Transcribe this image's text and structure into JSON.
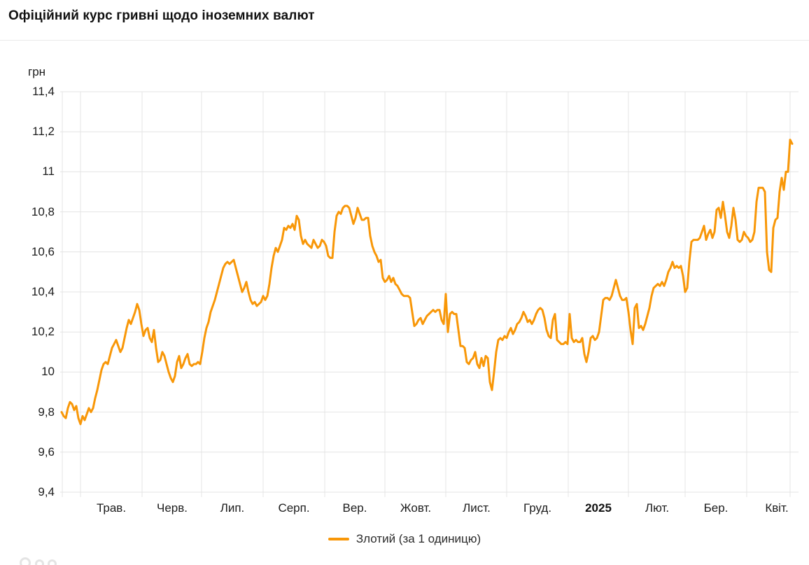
{
  "header": {
    "title": "Офіційний курс гривні щодо іноземних валют"
  },
  "legend": {
    "items": [
      {
        "label": "Злотий (за 1 одиницю)",
        "color": "#F89708"
      }
    ]
  },
  "chart_data": {
    "type": "line",
    "title": "Офіційний курс гривні щодо іноземних валют",
    "xlabel": "",
    "ylabel": "грн",
    "ylim": [
      9.4,
      11.4
    ],
    "grid": true,
    "legend_position": "bottom",
    "y_ticks": [
      11.4,
      11.2,
      11.0,
      10.8,
      10.6,
      10.4,
      10.2,
      10.0,
      9.8,
      9.6,
      9.4
    ],
    "y_tick_labels": [
      "11,4",
      "11,2",
      "11",
      "10,8",
      "10,6",
      "10,4",
      "10,2",
      "10",
      "9,8",
      "9,6",
      "9,4"
    ],
    "x_tick_labels": [
      "Трав.",
      "Черв.",
      "Лип.",
      "Серп.",
      "Вер.",
      "Жовт.",
      "Лист.",
      "Груд.",
      "2025",
      "Лют.",
      "Бер.",
      "Квіт."
    ],
    "x_bold_label": "2025",
    "period": "mid-April 2024 to mid-April 2025, daily values",
    "series": [
      {
        "name": "Злотий (за 1 одиницю)",
        "color": "#F89708",
        "unit": "грн",
        "values": [
          9.8,
          9.78,
          9.77,
          9.82,
          9.85,
          9.84,
          9.81,
          9.83,
          9.77,
          9.74,
          9.78,
          9.76,
          9.79,
          9.82,
          9.8,
          9.82,
          9.87,
          9.91,
          9.96,
          10.01,
          10.04,
          10.05,
          10.04,
          10.08,
          10.12,
          10.14,
          10.16,
          10.13,
          10.1,
          10.12,
          10.17,
          10.22,
          10.26,
          10.24,
          10.27,
          10.3,
          10.34,
          10.31,
          10.24,
          10.18,
          10.21,
          10.22,
          10.17,
          10.15,
          10.21,
          10.12,
          10.05,
          10.06,
          10.1,
          10.08,
          10.04,
          10.0,
          9.97,
          9.95,
          9.98,
          10.05,
          10.08,
          10.02,
          10.04,
          10.07,
          10.09,
          10.04,
          10.03,
          10.04,
          10.04,
          10.05,
          10.04,
          10.1,
          10.17,
          10.22,
          10.25,
          10.3,
          10.33,
          10.36,
          10.4,
          10.44,
          10.48,
          10.52,
          10.54,
          10.55,
          10.54,
          10.55,
          10.56,
          10.52,
          10.48,
          10.44,
          10.4,
          10.42,
          10.45,
          10.4,
          10.36,
          10.34,
          10.35,
          10.33,
          10.34,
          10.35,
          10.38,
          10.36,
          10.38,
          10.44,
          10.52,
          10.58,
          10.62,
          10.6,
          10.63,
          10.66,
          10.72,
          10.71,
          10.73,
          10.72,
          10.74,
          10.71,
          10.78,
          10.76,
          10.68,
          10.64,
          10.66,
          10.64,
          10.63,
          10.62,
          10.66,
          10.64,
          10.62,
          10.63,
          10.66,
          10.65,
          10.63,
          10.58,
          10.57,
          10.57,
          10.7,
          10.78,
          10.8,
          10.79,
          10.82,
          10.83,
          10.83,
          10.82,
          10.78,
          10.74,
          10.77,
          10.82,
          10.79,
          10.76,
          10.76,
          10.77,
          10.77,
          10.68,
          10.63,
          10.6,
          10.58,
          10.55,
          10.56,
          10.47,
          10.45,
          10.46,
          10.48,
          10.45,
          10.47,
          10.44,
          10.43,
          10.41,
          10.39,
          10.38,
          10.38,
          10.38,
          10.37,
          10.3,
          10.23,
          10.24,
          10.26,
          10.27,
          10.24,
          10.26,
          10.28,
          10.29,
          10.3,
          10.31,
          10.3,
          10.31,
          10.31,
          10.26,
          10.24,
          10.39,
          10.2,
          10.29,
          10.3,
          10.29,
          10.29,
          10.21,
          10.13,
          10.13,
          10.12,
          10.05,
          10.04,
          10.06,
          10.07,
          10.1,
          10.04,
          10.02,
          10.07,
          10.03,
          10.08,
          10.07,
          9.95,
          9.91,
          10.0,
          10.1,
          10.16,
          10.17,
          10.16,
          10.18,
          10.17,
          10.2,
          10.22,
          10.19,
          10.21,
          10.24,
          10.25,
          10.27,
          10.3,
          10.28,
          10.25,
          10.26,
          10.24,
          10.26,
          10.29,
          10.31,
          10.32,
          10.31,
          10.27,
          10.21,
          10.18,
          10.17,
          10.26,
          10.29,
          10.16,
          10.15,
          10.14,
          10.14,
          10.15,
          10.14,
          10.29,
          10.17,
          10.15,
          10.16,
          10.15,
          10.15,
          10.17,
          10.09,
          10.05,
          10.1,
          10.17,
          10.18,
          10.16,
          10.17,
          10.2,
          10.28,
          10.36,
          10.37,
          10.37,
          10.36,
          10.38,
          10.42,
          10.46,
          10.42,
          10.38,
          10.36,
          10.36,
          10.37,
          10.3,
          10.21,
          10.14,
          10.32,
          10.34,
          10.22,
          10.23,
          10.21,
          10.24,
          10.28,
          10.32,
          10.38,
          10.42,
          10.43,
          10.44,
          10.43,
          10.45,
          10.43,
          10.46,
          10.5,
          10.52,
          10.55,
          10.52,
          10.53,
          10.52,
          10.53,
          10.48,
          10.4,
          10.42,
          10.55,
          10.65,
          10.66,
          10.66,
          10.66,
          10.67,
          10.7,
          10.73,
          10.66,
          10.69,
          10.71,
          10.67,
          10.7,
          10.81,
          10.82,
          10.77,
          10.85,
          10.78,
          10.7,
          10.67,
          10.73,
          10.82,
          10.76,
          10.66,
          10.65,
          10.66,
          10.7,
          10.68,
          10.67,
          10.65,
          10.66,
          10.7,
          10.85,
          10.92,
          10.92,
          10.92,
          10.9,
          10.6,
          10.51,
          10.5,
          10.72,
          10.76,
          10.77,
          10.9,
          10.97,
          10.91,
          11.0,
          11.0,
          11.16,
          11.14
        ]
      }
    ]
  }
}
